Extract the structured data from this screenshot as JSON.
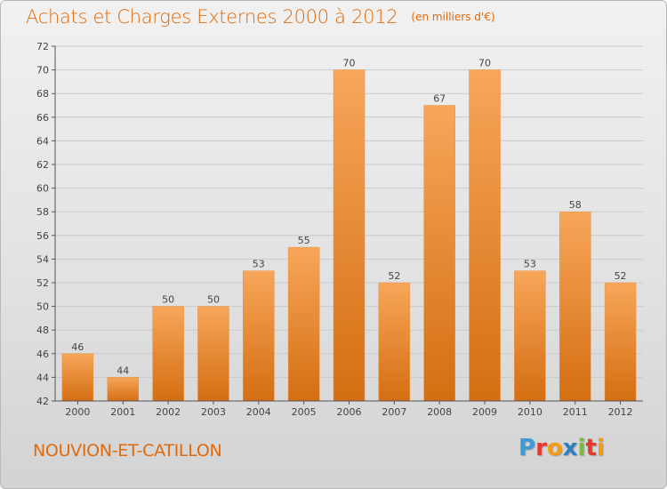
{
  "header": {
    "title": "Achats et Charges Externes 2000 à 2012",
    "subtitle": "(en milliers d'€)"
  },
  "footer": {
    "commune": "NOUVION-ET-CATILLON",
    "brand": [
      "P",
      "r",
      "o",
      "x",
      "i",
      "t",
      "i"
    ],
    "brand_colors": [
      "#3b9bd6",
      "#e53b2c",
      "#f39c12",
      "#2f7fc1",
      "#7cbb3a",
      "#e53b2c",
      "#f39c12"
    ]
  },
  "colors": {
    "bar_top": "#f7a65a",
    "bar_bottom": "#d46e12",
    "accent": "#e06a0b",
    "grid": "#c9c9c9"
  },
  "chart_data": {
    "type": "bar",
    "title": "Achats et Charges Externes 2000 à 2012",
    "subtitle": "(en milliers d'€)",
    "categories": [
      "2000",
      "2001",
      "2002",
      "2003",
      "2004",
      "2005",
      "2006",
      "2007",
      "2008",
      "2009",
      "2010",
      "2011",
      "2012"
    ],
    "values": [
      46,
      44,
      50,
      50,
      53,
      55,
      70,
      52,
      67,
      70,
      53,
      58,
      52
    ],
    "ylim": [
      42,
      72
    ],
    "yticks": [
      42,
      44,
      46,
      48,
      50,
      52,
      54,
      56,
      58,
      60,
      62,
      64,
      66,
      68,
      70,
      72
    ],
    "grid": true,
    "data_labels": true
  }
}
